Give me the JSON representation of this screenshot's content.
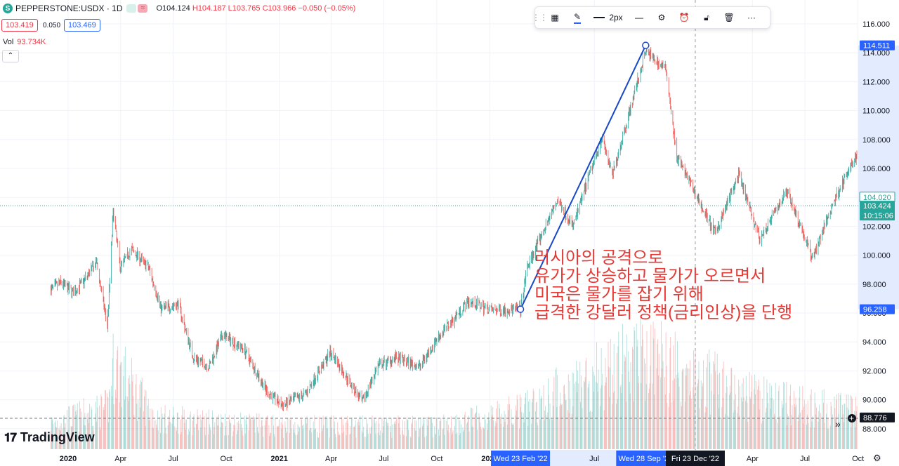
{
  "legend": {
    "symbol": "PEPPERSTONE:USDX · 1D",
    "symbol_icon": "S",
    "open": "O104.124",
    "high": "H104.187",
    "low": "L103.765",
    "close": "C103.966",
    "change": "−0.050 (−0.05%)",
    "bid": "103.419",
    "spread": "0.050",
    "ask": "103.469",
    "vol_label": "Vol",
    "vol_value": "93.734K"
  },
  "toolbar": {
    "width_label": "2px"
  },
  "logo": "TradingView",
  "annotation": [
    "러시아의 공격으로",
    "유가가 상승하고 물가가 오르면서",
    "미국은 물가를 잡기 위해",
    "급격한 강달러 정책(금리인상)을 단행"
  ],
  "colors": {
    "up": "#26a69a",
    "down": "#ef5350",
    "line": "#1848c8",
    "text": "#e53935",
    "axis_hl": "#2962ff"
  },
  "chart_data": {
    "type": "candlestick",
    "symbol": "PEPPERSTONE:USDX",
    "interval": "1D",
    "y_ticks": [
      "116.000",
      "114.000",
      "112.000",
      "110.000",
      "108.000",
      "106.000",
      "104.000",
      "102.000",
      "100.000",
      "98.000",
      "96.000",
      "94.000",
      "92.000",
      "90.000",
      "88.000"
    ],
    "ylim": [
      87,
      117
    ],
    "x_ticks": [
      "2020",
      "Apr",
      "Jul",
      "Oct",
      "2021",
      "Apr",
      "Jul",
      "Oct",
      "2022",
      "Jul",
      "Apr",
      "Jul",
      "Oct"
    ],
    "x_tick_dates": [
      "2020-01-01",
      "2020-04-01",
      "2020-07-01",
      "2020-10-01",
      "2021-01-01",
      "2021-04-01",
      "2021-07-01",
      "2021-10-01",
      "2022-01-01",
      "2022-07-01",
      "2023-04-01",
      "2023-07-01",
      "2023-10-01"
    ],
    "price_path": [
      {
        "date": "2019-12-01",
        "close": 97.6
      },
      {
        "date": "2019-12-20",
        "close": 98.1
      },
      {
        "date": "2020-01-10",
        "close": 97.4
      },
      {
        "date": "2020-01-28",
        "close": 98.2
      },
      {
        "date": "2020-02-19",
        "close": 99.5
      },
      {
        "date": "2020-03-09",
        "close": 95.1
      },
      {
        "date": "2020-03-19",
        "close": 103.0
      },
      {
        "date": "2020-03-31",
        "close": 99.2
      },
      {
        "date": "2020-04-20",
        "close": 100.4
      },
      {
        "date": "2020-05-20",
        "close": 99.1
      },
      {
        "date": "2020-06-10",
        "close": 96.3
      },
      {
        "date": "2020-07-10",
        "close": 96.6
      },
      {
        "date": "2020-08-05",
        "close": 92.9
      },
      {
        "date": "2020-09-01",
        "close": 92.3
      },
      {
        "date": "2020-09-25",
        "close": 94.5
      },
      {
        "date": "2020-11-01",
        "close": 93.5
      },
      {
        "date": "2020-12-10",
        "close": 90.6
      },
      {
        "date": "2021-01-06",
        "close": 89.6
      },
      {
        "date": "2021-02-15",
        "close": 90.4
      },
      {
        "date": "2021-03-31",
        "close": 93.3
      },
      {
        "date": "2021-05-25",
        "close": 89.8
      },
      {
        "date": "2021-06-20",
        "close": 92.3
      },
      {
        "date": "2021-07-20",
        "close": 92.9
      },
      {
        "date": "2021-09-01",
        "close": 92.3
      },
      {
        "date": "2021-10-01",
        "close": 94.2
      },
      {
        "date": "2021-11-24",
        "close": 96.8
      },
      {
        "date": "2022-01-05",
        "close": 96.2
      },
      {
        "date": "2022-02-23",
        "close": 96.258
      },
      {
        "date": "2022-03-07",
        "close": 99.2
      },
      {
        "date": "2022-04-28",
        "close": 103.8
      },
      {
        "date": "2022-05-25",
        "close": 102.0
      },
      {
        "date": "2022-07-14",
        "close": 108.2
      },
      {
        "date": "2022-08-01",
        "close": 105.5
      },
      {
        "date": "2022-09-28",
        "close": 114.1
      },
      {
        "date": "2022-11-03",
        "close": 112.8
      },
      {
        "date": "2022-11-20",
        "close": 106.9
      },
      {
        "date": "2023-01-26",
        "close": 101.5
      },
      {
        "date": "2023-03-08",
        "close": 105.5
      },
      {
        "date": "2023-04-14",
        "close": 101.1
      },
      {
        "date": "2023-05-31",
        "close": 104.5
      },
      {
        "date": "2023-07-14",
        "close": 99.8
      },
      {
        "date": "2023-08-25",
        "close": 104.2
      },
      {
        "date": "2023-10-03",
        "close": 107.2
      },
      {
        "date": "2023-11-01",
        "close": 105.9
      },
      {
        "date": "2023-11-27",
        "close": 103.42
      }
    ],
    "volume_scale": [
      0,
      5
    ],
    "volume": [
      {
        "date": "2019-12-01",
        "v": 1.0
      },
      {
        "date": "2020-03-10",
        "v": 1.6
      },
      {
        "date": "2020-03-20",
        "v": 3.4
      },
      {
        "date": "2020-06-01",
        "v": 1.2
      },
      {
        "date": "2021-01-01",
        "v": 0.9
      },
      {
        "date": "2021-10-01",
        "v": 0.9
      },
      {
        "date": "2022-03-01",
        "v": 1.5
      },
      {
        "date": "2022-06-01",
        "v": 2.6
      },
      {
        "date": "2022-09-28",
        "v": 3.7
      },
      {
        "date": "2022-12-10",
        "v": 3.0
      },
      {
        "date": "2023-04-01",
        "v": 2.0
      },
      {
        "date": "2023-11-27",
        "v": 1.2
      }
    ],
    "drawn_trendline": {
      "from": {
        "date": "2022-02-23",
        "price": 96.258
      },
      "to": {
        "date": "2022-09-28",
        "price": 114.511
      }
    },
    "price_labels": [
      {
        "price": 114.511,
        "text": "114.511",
        "style": "blue"
      },
      {
        "price": 104.02,
        "text": "104.020",
        "style": "green-outline"
      },
      {
        "price": 103.424,
        "text": "103.424",
        "style": "green-fill",
        "extra": "10:15:06"
      },
      {
        "price": 96.258,
        "text": "96.258",
        "style": "blue"
      },
      {
        "price": 88.776,
        "text": "88.776",
        "style": "dark"
      }
    ],
    "last_price_line": 103.424,
    "vertical_crosshair_date": "2022-12-23",
    "date_labels": [
      {
        "date": "2022-02-23",
        "text": "Wed 23 Feb '22",
        "style": "blue"
      },
      {
        "date": "2022-09-28",
        "text": "Wed 28 Sep '22",
        "style": "blue"
      },
      {
        "date": "2022-12-23",
        "text": "Fri 23 Dec '22",
        "style": "dark"
      }
    ],
    "grid": true
  }
}
